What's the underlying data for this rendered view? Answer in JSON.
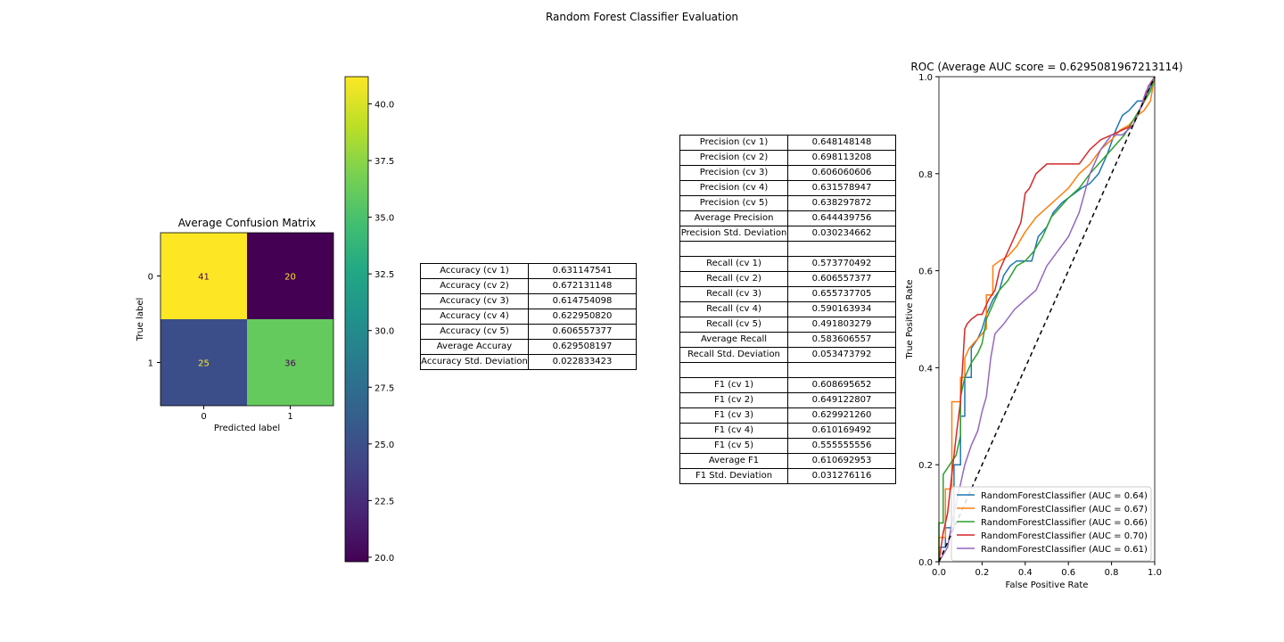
{
  "figure": {
    "suptitle": "Random Forest Classifier Evaluation"
  },
  "colors": {
    "series": [
      "#1f77b4",
      "#ff7f0e",
      "#2ca02c",
      "#d62728",
      "#9467bd"
    ],
    "diagonal": "#000000",
    "viridis_high": "#fde725",
    "viridis_low": "#440154"
  },
  "chart_data": [
    {
      "type": "heatmap",
      "title": "Average Confusion Matrix",
      "xlabel": "Predicted label",
      "ylabel": "True label",
      "x_ticks": [
        "0",
        "1"
      ],
      "y_ticks": [
        "0",
        "1"
      ],
      "values": [
        [
          41,
          20
        ],
        [
          25,
          36
        ]
      ],
      "colorbar": {
        "range": [
          20,
          41
        ],
        "ticks": [
          "20.0",
          "22.5",
          "25.0",
          "27.5",
          "30.0",
          "32.5",
          "35.0",
          "37.5",
          "40.0"
        ],
        "colormap": "viridis"
      }
    },
    {
      "type": "table",
      "rows": [
        [
          "Accuracy (cv 1)",
          "0.631147541"
        ],
        [
          "Accuracy (cv 2)",
          "0.672131148"
        ],
        [
          "Accuracy (cv 3)",
          "0.614754098"
        ],
        [
          "Accuracy (cv 4)",
          "0.622950820"
        ],
        [
          "Accuracy (cv 5)",
          "0.606557377"
        ],
        [
          "Average Accuray",
          "0.629508197"
        ],
        [
          "Accuracy Std. Deviation",
          "0.022833423"
        ]
      ]
    },
    {
      "type": "table",
      "rows": [
        [
          "Precision (cv 1)",
          "0.648148148"
        ],
        [
          "Precision (cv 2)",
          "0.698113208"
        ],
        [
          "Precision (cv 3)",
          "0.606060606"
        ],
        [
          "Precision (cv 4)",
          "0.631578947"
        ],
        [
          "Precision (cv 5)",
          "0.638297872"
        ],
        [
          "Average Precision",
          "0.644439756"
        ],
        [
          "Precision Std. Deviation",
          "0.030234662"
        ],
        [
          "",
          ""
        ],
        [
          "Recall (cv 1)",
          "0.573770492"
        ],
        [
          "Recall (cv 2)",
          "0.606557377"
        ],
        [
          "Recall (cv 3)",
          "0.655737705"
        ],
        [
          "Recall (cv 4)",
          "0.590163934"
        ],
        [
          "Recall (cv 5)",
          "0.491803279"
        ],
        [
          "Average Recall",
          "0.583606557"
        ],
        [
          "Recall Std. Deviation",
          "0.053473792"
        ],
        [
          "",
          ""
        ],
        [
          "F1 (cv 1)",
          "0.608695652"
        ],
        [
          "F1 (cv 2)",
          "0.649122807"
        ],
        [
          "F1 (cv 3)",
          "0.629921260"
        ],
        [
          "F1 (cv 4)",
          "0.610169492"
        ],
        [
          "F1 (cv 5)",
          "0.555555556"
        ],
        [
          "Average F1",
          "0.610692953"
        ],
        [
          "F1 Std. Deviation",
          "0.031276116"
        ]
      ]
    },
    {
      "type": "line",
      "title": "ROC (Average AUC score = 0.6295081967213114)",
      "xlabel": "False Positive Rate",
      "ylabel": "True Positive Rate",
      "xlim": [
        0,
        1
      ],
      "ylim": [
        0,
        1
      ],
      "x_ticks": [
        "0.0",
        "0.2",
        "0.4",
        "0.6",
        "0.8",
        "1.0"
      ],
      "y_ticks": [
        "0.0",
        "0.2",
        "0.4",
        "0.6",
        "0.8",
        "1.0"
      ],
      "legend": "lower-right",
      "diagonal_line": "dashed",
      "series": [
        {
          "name": "RandomForestClassifier (AUC = 0.64)",
          "x": [
            0,
            0,
            0.03,
            0.03,
            0.07,
            0.07,
            0.1,
            0.1,
            0.12,
            0.12,
            0.15,
            0.15,
            0.18,
            0.2,
            0.22,
            0.25,
            0.28,
            0.3,
            0.33,
            0.36,
            0.4,
            0.43,
            0.46,
            0.5,
            0.53,
            0.57,
            0.6,
            0.66,
            0.7,
            0.74,
            0.78,
            0.82,
            0.85,
            0.88,
            0.92,
            0.95,
            0.98,
            1.0
          ],
          "y": [
            0,
            0.03,
            0.03,
            0.07,
            0.07,
            0.2,
            0.2,
            0.3,
            0.3,
            0.38,
            0.38,
            0.44,
            0.46,
            0.48,
            0.51,
            0.54,
            0.56,
            0.59,
            0.61,
            0.62,
            0.62,
            0.62,
            0.67,
            0.69,
            0.72,
            0.74,
            0.75,
            0.77,
            0.78,
            0.8,
            0.84,
            0.89,
            0.92,
            0.93,
            0.95,
            0.95,
            0.98,
            1.0
          ]
        },
        {
          "name": "RandomForestClassifier (AUC = 0.67)",
          "x": [
            0,
            0,
            0.03,
            0.03,
            0.06,
            0.06,
            0.1,
            0.1,
            0.12,
            0.12,
            0.14,
            0.18,
            0.22,
            0.22,
            0.25,
            0.25,
            0.28,
            0.32,
            0.36,
            0.4,
            0.45,
            0.5,
            0.55,
            0.6,
            0.65,
            0.7,
            0.75,
            0.8,
            0.84,
            0.88,
            0.92,
            0.95,
            0.98,
            1.0
          ],
          "y": [
            0,
            0.05,
            0.05,
            0.15,
            0.15,
            0.33,
            0.33,
            0.38,
            0.38,
            0.42,
            0.44,
            0.46,
            0.48,
            0.55,
            0.55,
            0.61,
            0.62,
            0.63,
            0.65,
            0.68,
            0.71,
            0.73,
            0.75,
            0.77,
            0.8,
            0.82,
            0.85,
            0.87,
            0.89,
            0.9,
            0.92,
            0.93,
            0.95,
            1.0
          ]
        },
        {
          "name": "RandomForestClassifier (AUC = 0.66)",
          "x": [
            0,
            0,
            0.02,
            0.02,
            0.05,
            0.08,
            0.1,
            0.1,
            0.12,
            0.15,
            0.18,
            0.2,
            0.22,
            0.25,
            0.28,
            0.32,
            0.36,
            0.4,
            0.44,
            0.48,
            0.52,
            0.56,
            0.6,
            0.65,
            0.7,
            0.74,
            0.78,
            0.82,
            0.86,
            0.9,
            0.94,
            0.98,
            1.0
          ],
          "y": [
            0,
            0.08,
            0.08,
            0.18,
            0.2,
            0.22,
            0.26,
            0.34,
            0.38,
            0.41,
            0.43,
            0.45,
            0.5,
            0.53,
            0.56,
            0.58,
            0.61,
            0.62,
            0.64,
            0.67,
            0.71,
            0.73,
            0.75,
            0.77,
            0.8,
            0.82,
            0.84,
            0.86,
            0.88,
            0.91,
            0.94,
            0.97,
            1.0
          ]
        },
        {
          "name": "RandomForestClassifier (AUC = 0.70)",
          "x": [
            0,
            0.02,
            0.04,
            0.06,
            0.08,
            0.1,
            0.12,
            0.13,
            0.15,
            0.18,
            0.2,
            0.23,
            0.26,
            0.28,
            0.3,
            0.34,
            0.38,
            0.4,
            0.42,
            0.45,
            0.5,
            0.55,
            0.6,
            0.65,
            0.7,
            0.75,
            0.8,
            0.85,
            0.9,
            0.95,
            0.97,
            1.0
          ],
          "y": [
            0,
            0.06,
            0.1,
            0.18,
            0.26,
            0.33,
            0.48,
            0.49,
            0.5,
            0.51,
            0.51,
            0.54,
            0.56,
            0.6,
            0.62,
            0.66,
            0.7,
            0.76,
            0.77,
            0.8,
            0.82,
            0.82,
            0.82,
            0.82,
            0.85,
            0.87,
            0.88,
            0.89,
            0.9,
            0.95,
            0.98,
            1.0
          ]
        },
        {
          "name": "RandomForestClassifier (AUC = 0.61)",
          "x": [
            0,
            0.04,
            0.06,
            0.08,
            0.1,
            0.12,
            0.15,
            0.18,
            0.2,
            0.22,
            0.24,
            0.26,
            0.3,
            0.35,
            0.4,
            0.45,
            0.5,
            0.55,
            0.6,
            0.65,
            0.7,
            0.75,
            0.8,
            0.85,
            0.9,
            0.93,
            0.96,
            1.0
          ],
          "y": [
            0,
            0.03,
            0.08,
            0.12,
            0.16,
            0.2,
            0.24,
            0.27,
            0.31,
            0.34,
            0.42,
            0.47,
            0.49,
            0.52,
            0.54,
            0.56,
            0.61,
            0.64,
            0.67,
            0.72,
            0.8,
            0.85,
            0.88,
            0.88,
            0.9,
            0.93,
            0.97,
            1.0
          ]
        }
      ]
    }
  ]
}
